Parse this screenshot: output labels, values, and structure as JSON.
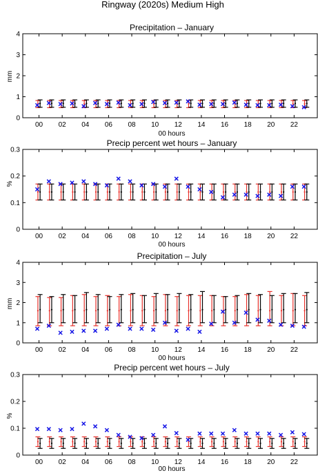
{
  "figure": {
    "title": "Ringway (2020s) Medium High"
  },
  "colors": {
    "black_bar": "#000000",
    "red_bar": "#e8302a",
    "observed_marker": "#1414e6"
  },
  "chart_data": [
    {
      "type": "errorbar",
      "title": "Precipitation – January",
      "xlabel": "00 hours",
      "ylabel": "mm",
      "ylim": [
        0,
        4
      ],
      "yticks": [
        0,
        1,
        2,
        3,
        4
      ],
      "xticks": [
        0,
        2,
        4,
        6,
        8,
        10,
        12,
        14,
        16,
        18,
        20,
        22
      ],
      "xtick_labels": [
        "00",
        "02",
        "04",
        "06",
        "08",
        "10",
        "12",
        "14",
        "16",
        "18",
        "20",
        "22"
      ],
      "hours": [
        0,
        1,
        2,
        3,
        4,
        5,
        6,
        7,
        8,
        9,
        10,
        11,
        12,
        13,
        14,
        15,
        16,
        17,
        18,
        19,
        20,
        21,
        22,
        23
      ],
      "series": [
        {
          "role": "projection-black",
          "center": [
            0.68,
            0.68,
            0.68,
            0.68,
            0.68,
            0.68,
            0.68,
            0.68,
            0.68,
            0.68,
            0.68,
            0.68,
            0.68,
            0.68,
            0.68,
            0.68,
            0.68,
            0.68,
            0.68,
            0.68,
            0.68,
            0.68,
            0.68,
            0.68
          ],
          "low": [
            0.5,
            0.5,
            0.5,
            0.5,
            0.5,
            0.5,
            0.5,
            0.5,
            0.5,
            0.5,
            0.5,
            0.5,
            0.5,
            0.5,
            0.5,
            0.5,
            0.5,
            0.5,
            0.5,
            0.5,
            0.5,
            0.5,
            0.5,
            0.5
          ],
          "high": [
            0.85,
            0.85,
            0.85,
            0.85,
            0.85,
            0.85,
            0.85,
            0.85,
            0.85,
            0.85,
            0.85,
            0.85,
            0.85,
            0.85,
            0.85,
            0.85,
            0.85,
            0.85,
            0.85,
            0.85,
            0.85,
            0.85,
            0.85,
            0.85
          ]
        },
        {
          "role": "projection-red",
          "center": [
            0.66,
            0.66,
            0.66,
            0.66,
            0.66,
            0.66,
            0.66,
            0.66,
            0.66,
            0.66,
            0.66,
            0.66,
            0.66,
            0.66,
            0.66,
            0.66,
            0.66,
            0.66,
            0.66,
            0.66,
            0.66,
            0.66,
            0.66,
            0.66
          ],
          "low": [
            0.48,
            0.48,
            0.48,
            0.48,
            0.48,
            0.48,
            0.48,
            0.48,
            0.48,
            0.48,
            0.48,
            0.48,
            0.48,
            0.48,
            0.48,
            0.48,
            0.48,
            0.48,
            0.48,
            0.48,
            0.48,
            0.48,
            0.48,
            0.48
          ],
          "high": [
            0.82,
            0.82,
            0.82,
            0.82,
            0.82,
            0.82,
            0.82,
            0.82,
            0.82,
            0.82,
            0.82,
            0.82,
            0.82,
            0.82,
            0.82,
            0.82,
            0.82,
            0.82,
            0.82,
            0.82,
            0.82,
            0.82,
            0.82,
            0.82
          ]
        },
        {
          "role": "observed",
          "values": [
            0.6,
            0.7,
            0.65,
            0.68,
            0.55,
            0.7,
            0.65,
            0.72,
            0.6,
            0.65,
            0.75,
            0.7,
            0.72,
            0.78,
            0.62,
            0.65,
            0.65,
            0.72,
            0.62,
            0.6,
            0.6,
            0.62,
            0.55,
            0.5
          ]
        }
      ]
    },
    {
      "type": "errorbar",
      "title": "Precip percent wet hours – January",
      "xlabel": "00 hours",
      "ylabel": "%",
      "ylim": [
        0,
        0.3
      ],
      "yticks": [
        0,
        0.1,
        0.2,
        0.3
      ],
      "xticks": [
        0,
        2,
        4,
        6,
        8,
        10,
        12,
        14,
        16,
        18,
        20,
        22
      ],
      "xtick_labels": [
        "00",
        "02",
        "04",
        "06",
        "08",
        "10",
        "12",
        "14",
        "16",
        "18",
        "20",
        "22"
      ],
      "hours": [
        0,
        1,
        2,
        3,
        4,
        5,
        6,
        7,
        8,
        9,
        10,
        11,
        12,
        13,
        14,
        15,
        16,
        17,
        18,
        19,
        20,
        21,
        22,
        23
      ],
      "series": [
        {
          "role": "projection-black",
          "center": [
            0.14,
            0.14,
            0.14,
            0.14,
            0.14,
            0.14,
            0.14,
            0.14,
            0.14,
            0.14,
            0.14,
            0.14,
            0.14,
            0.14,
            0.14,
            0.14,
            0.14,
            0.14,
            0.14,
            0.14,
            0.14,
            0.14,
            0.14,
            0.14
          ],
          "low": [
            0.11,
            0.11,
            0.11,
            0.11,
            0.11,
            0.11,
            0.11,
            0.11,
            0.11,
            0.11,
            0.11,
            0.11,
            0.11,
            0.11,
            0.11,
            0.11,
            0.11,
            0.11,
            0.11,
            0.11,
            0.11,
            0.11,
            0.11,
            0.11
          ],
          "high": [
            0.17,
            0.17,
            0.17,
            0.17,
            0.17,
            0.17,
            0.17,
            0.17,
            0.17,
            0.17,
            0.17,
            0.17,
            0.17,
            0.17,
            0.17,
            0.17,
            0.17,
            0.17,
            0.17,
            0.17,
            0.17,
            0.17,
            0.17,
            0.17
          ]
        },
        {
          "role": "projection-red",
          "center": [
            0.14,
            0.14,
            0.14,
            0.14,
            0.14,
            0.14,
            0.14,
            0.14,
            0.14,
            0.14,
            0.14,
            0.14,
            0.14,
            0.14,
            0.14,
            0.14,
            0.14,
            0.14,
            0.14,
            0.14,
            0.14,
            0.14,
            0.14,
            0.14
          ],
          "low": [
            0.11,
            0.11,
            0.11,
            0.11,
            0.11,
            0.11,
            0.11,
            0.11,
            0.11,
            0.11,
            0.11,
            0.11,
            0.11,
            0.11,
            0.11,
            0.11,
            0.11,
            0.11,
            0.11,
            0.11,
            0.11,
            0.11,
            0.11,
            0.11
          ],
          "high": [
            0.17,
            0.17,
            0.17,
            0.17,
            0.17,
            0.17,
            0.17,
            0.17,
            0.17,
            0.17,
            0.17,
            0.17,
            0.17,
            0.17,
            0.17,
            0.17,
            0.17,
            0.17,
            0.17,
            0.17,
            0.17,
            0.17,
            0.17,
            0.17
          ]
        },
        {
          "role": "observed",
          "values": [
            0.15,
            0.18,
            0.17,
            0.175,
            0.18,
            0.17,
            0.165,
            0.19,
            0.18,
            0.165,
            0.17,
            0.16,
            0.19,
            0.16,
            0.15,
            0.14,
            0.12,
            0.13,
            0.13,
            0.125,
            0.13,
            0.125,
            0.16,
            0.16
          ]
        }
      ]
    },
    {
      "type": "errorbar",
      "title": "Precipitation – July",
      "xlabel": "00 hours",
      "ylabel": "mm",
      "ylim": [
        0,
        4
      ],
      "yticks": [
        0,
        1,
        2,
        3,
        4
      ],
      "xticks": [
        0,
        2,
        4,
        6,
        8,
        10,
        12,
        14,
        16,
        18,
        20,
        22
      ],
      "xtick_labels": [
        "00",
        "02",
        "04",
        "06",
        "08",
        "10",
        "12",
        "14",
        "16",
        "18",
        "20",
        "22"
      ],
      "hours": [
        0,
        1,
        2,
        3,
        4,
        5,
        6,
        7,
        8,
        9,
        10,
        11,
        12,
        13,
        14,
        15,
        16,
        17,
        18,
        19,
        20,
        21,
        22,
        23
      ],
      "series": [
        {
          "role": "projection-black",
          "center": [
            1.65,
            1.65,
            1.65,
            1.65,
            1.65,
            1.65,
            1.65,
            1.65,
            1.65,
            1.65,
            1.65,
            1.65,
            1.65,
            1.65,
            1.65,
            1.65,
            1.65,
            1.65,
            1.65,
            1.65,
            1.65,
            1.65,
            1.65,
            1.65
          ],
          "low": [
            1.0,
            1.0,
            1.0,
            1.0,
            1.0,
            1.0,
            1.0,
            1.0,
            1.0,
            1.0,
            1.0,
            1.0,
            1.0,
            1.0,
            1.0,
            1.0,
            1.0,
            1.0,
            1.0,
            1.0,
            1.0,
            1.0,
            1.0,
            1.0
          ],
          "high": [
            2.4,
            2.3,
            2.4,
            2.35,
            2.5,
            2.4,
            2.3,
            2.4,
            2.45,
            2.35,
            2.45,
            2.4,
            2.45,
            2.4,
            2.55,
            2.35,
            2.3,
            2.35,
            2.45,
            2.4,
            2.35,
            2.45,
            2.45,
            2.5
          ]
        },
        {
          "role": "projection-red",
          "center": [
            1.6,
            1.6,
            1.6,
            1.6,
            1.6,
            1.6,
            1.6,
            1.6,
            1.6,
            1.6,
            1.6,
            1.6,
            1.6,
            1.6,
            1.6,
            1.6,
            1.6,
            1.6,
            1.6,
            1.6,
            1.6,
            1.6,
            1.6,
            1.6
          ],
          "low": [
            0.85,
            0.85,
            0.85,
            0.85,
            0.85,
            0.85,
            0.85,
            0.85,
            0.85,
            0.85,
            0.85,
            0.85,
            0.85,
            0.85,
            0.85,
            0.85,
            0.85,
            0.85,
            0.85,
            0.85,
            0.85,
            0.85,
            0.85,
            0.85
          ],
          "high": [
            2.3,
            2.25,
            2.25,
            2.35,
            2.4,
            2.3,
            2.35,
            2.3,
            2.4,
            2.35,
            2.3,
            2.4,
            2.3,
            2.35,
            2.35,
            2.35,
            2.3,
            2.3,
            2.4,
            2.35,
            2.55,
            2.35,
            2.45,
            2.35
          ]
        },
        {
          "role": "observed",
          "values": [
            0.7,
            0.85,
            0.5,
            0.55,
            0.6,
            0.6,
            0.7,
            0.9,
            0.7,
            0.7,
            0.65,
            1.0,
            0.6,
            0.7,
            0.55,
            0.95,
            1.55,
            1.0,
            1.5,
            1.15,
            1.1,
            0.9,
            0.85,
            0.8
          ]
        }
      ]
    },
    {
      "type": "errorbar",
      "title": "Precip percent wet hours – July",
      "xlabel": "00 hours",
      "ylabel": "%",
      "ylim": [
        0,
        0.3
      ],
      "yticks": [
        0,
        0.1,
        0.2,
        0.3
      ],
      "xticks": [
        0,
        2,
        4,
        6,
        8,
        10,
        12,
        14,
        16,
        18,
        20,
        22
      ],
      "xtick_labels": [
        "00",
        "02",
        "04",
        "06",
        "08",
        "10",
        "12",
        "14",
        "16",
        "18",
        "20",
        "22"
      ],
      "hours": [
        0,
        1,
        2,
        3,
        4,
        5,
        6,
        7,
        8,
        9,
        10,
        11,
        12,
        13,
        14,
        15,
        16,
        17,
        18,
        19,
        20,
        21,
        22,
        23
      ],
      "series": [
        {
          "role": "projection-black",
          "center": [
            0.044,
            0.044,
            0.044,
            0.044,
            0.044,
            0.044,
            0.044,
            0.044,
            0.044,
            0.044,
            0.044,
            0.044,
            0.044,
            0.044,
            0.044,
            0.044,
            0.044,
            0.044,
            0.044,
            0.044,
            0.044,
            0.044,
            0.044,
            0.044
          ],
          "low": [
            0.025,
            0.025,
            0.025,
            0.025,
            0.025,
            0.025,
            0.025,
            0.025,
            0.025,
            0.025,
            0.025,
            0.025,
            0.025,
            0.025,
            0.025,
            0.025,
            0.025,
            0.025,
            0.025,
            0.025,
            0.025,
            0.025,
            0.025,
            0.025
          ],
          "high": [
            0.062,
            0.062,
            0.062,
            0.062,
            0.062,
            0.062,
            0.062,
            0.062,
            0.062,
            0.062,
            0.062,
            0.062,
            0.062,
            0.062,
            0.062,
            0.062,
            0.062,
            0.062,
            0.062,
            0.062,
            0.062,
            0.062,
            0.062,
            0.062
          ]
        },
        {
          "role": "projection-red",
          "center": [
            0.05,
            0.05,
            0.05,
            0.05,
            0.05,
            0.05,
            0.05,
            0.05,
            0.05,
            0.05,
            0.05,
            0.05,
            0.05,
            0.05,
            0.05,
            0.05,
            0.05,
            0.05,
            0.05,
            0.05,
            0.05,
            0.05,
            0.05,
            0.05
          ],
          "low": [
            0.032,
            0.032,
            0.032,
            0.032,
            0.032,
            0.032,
            0.032,
            0.032,
            0.032,
            0.032,
            0.032,
            0.032,
            0.032,
            0.032,
            0.032,
            0.032,
            0.032,
            0.032,
            0.032,
            0.032,
            0.032,
            0.032,
            0.032,
            0.032
          ],
          "high": [
            0.068,
            0.068,
            0.068,
            0.068,
            0.068,
            0.068,
            0.068,
            0.068,
            0.068,
            0.068,
            0.068,
            0.068,
            0.068,
            0.068,
            0.068,
            0.068,
            0.068,
            0.068,
            0.068,
            0.068,
            0.068,
            0.068,
            0.068,
            0.068
          ]
        },
        {
          "role": "observed",
          "values": [
            0.097,
            0.097,
            0.093,
            0.097,
            0.117,
            0.107,
            0.093,
            0.075,
            0.068,
            0.063,
            0.075,
            0.107,
            0.082,
            0.057,
            0.08,
            0.08,
            0.08,
            0.093,
            0.08,
            0.08,
            0.08,
            0.075,
            0.085,
            0.078
          ]
        }
      ]
    }
  ]
}
